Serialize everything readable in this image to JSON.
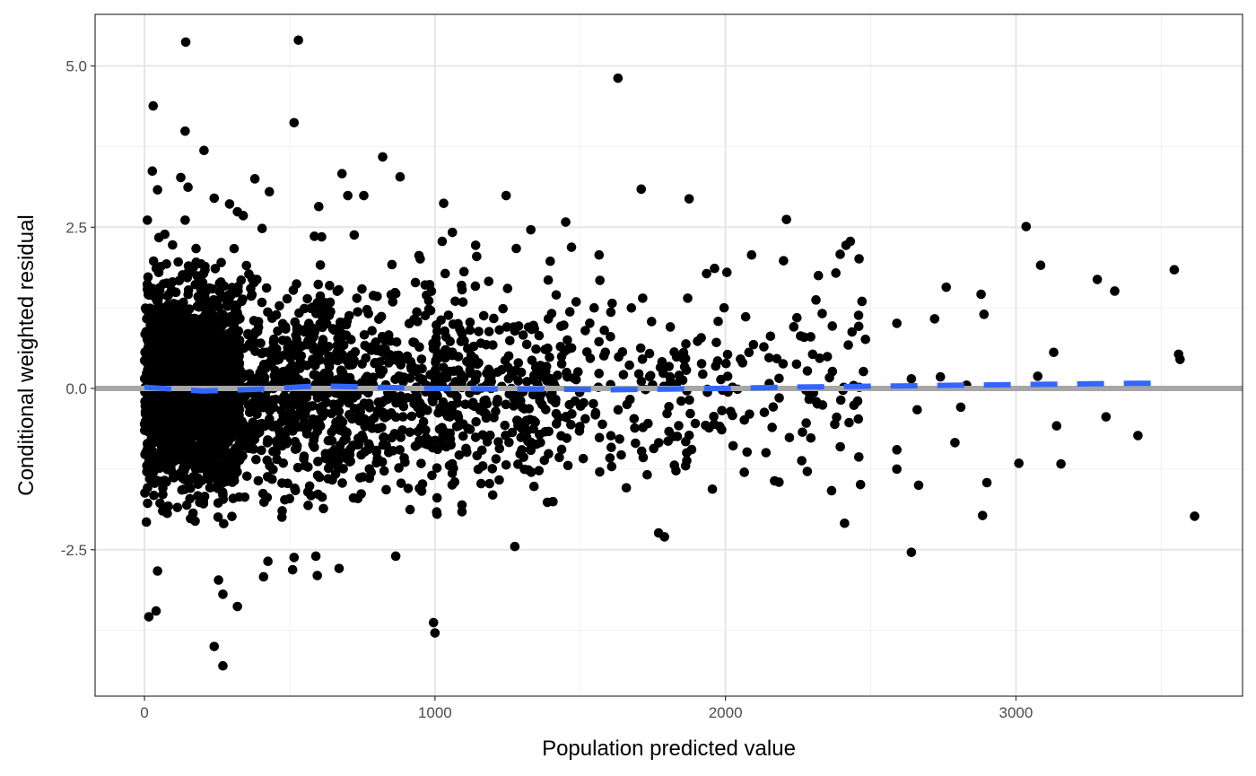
{
  "chart_data": {
    "type": "scatter",
    "title": "",
    "xlabel": "Population predicted value",
    "ylabel": "Conditional weighted residual",
    "xlim": [
      -170,
      3780
    ],
    "ylim": [
      -4.77,
      5.8
    ],
    "x_ticks": [
      {
        "value": 0,
        "label": "0"
      },
      {
        "value": 1000,
        "label": "1000"
      },
      {
        "value": 2000,
        "label": "2000"
      },
      {
        "value": 3000,
        "label": "3000"
      }
    ],
    "y_ticks": [
      {
        "value": -2.5,
        "label": "-2.5"
      },
      {
        "value": 0,
        "label": "0.0"
      },
      {
        "value": 2.5,
        "label": "2.5"
      },
      {
        "value": 5,
        "label": "5.0"
      }
    ],
    "x_minor_breaks": [
      500,
      1500,
      2500,
      3500
    ],
    "y_minor_breaks": [
      -3.75,
      -1.25,
      1.25,
      3.75
    ],
    "grid": true,
    "reference_line": {
      "y": 0,
      "color": "#a6a6a6"
    },
    "point_color": "#000000",
    "series": [
      {
        "type": "scatter",
        "points": [
          {
            "x": 142,
            "y": 5.37
          },
          {
            "x": 530,
            "y": 5.4
          },
          {
            "x": 1630,
            "y": 4.81
          },
          {
            "x": 30,
            "y": 4.38
          },
          {
            "x": 515,
            "y": 4.12
          },
          {
            "x": 140,
            "y": 3.99
          },
          {
            "x": 205,
            "y": 3.69
          },
          {
            "x": 820,
            "y": 3.59
          },
          {
            "x": 27,
            "y": 3.37
          },
          {
            "x": 680,
            "y": 3.33
          },
          {
            "x": 880,
            "y": 3.28
          },
          {
            "x": 125,
            "y": 3.27
          },
          {
            "x": 380,
            "y": 3.25
          },
          {
            "x": 45,
            "y": 3.08
          },
          {
            "x": 150,
            "y": 3.12
          },
          {
            "x": 430,
            "y": 3.05
          },
          {
            "x": 1710,
            "y": 3.09
          },
          {
            "x": 700,
            "y": 2.99
          },
          {
            "x": 755,
            "y": 2.99
          },
          {
            "x": 240,
            "y": 2.95
          },
          {
            "x": 1875,
            "y": 2.94
          },
          {
            "x": 1245,
            "y": 2.99
          },
          {
            "x": 1030,
            "y": 2.87
          },
          {
            "x": 293,
            "y": 2.86
          },
          {
            "x": 600,
            "y": 2.82
          },
          {
            "x": 320,
            "y": 2.74
          },
          {
            "x": 340,
            "y": 2.68
          },
          {
            "x": 10,
            "y": 2.61
          },
          {
            "x": 140,
            "y": 2.61
          },
          {
            "x": 2210,
            "y": 2.62
          },
          {
            "x": 1450,
            "y": 2.58
          },
          {
            "x": 3035,
            "y": 2.51
          },
          {
            "x": 1330,
            "y": 2.46
          },
          {
            "x": 405,
            "y": 2.48
          },
          {
            "x": 1060,
            "y": 2.42
          },
          {
            "x": 70,
            "y": 2.39
          },
          {
            "x": 722,
            "y": 2.38
          },
          {
            "x": 585,
            "y": 2.36
          },
          {
            "x": 610,
            "y": 2.35
          },
          {
            "x": 1025,
            "y": 2.28
          },
          {
            "x": 1140,
            "y": 2.22
          },
          {
            "x": 2430,
            "y": 2.28
          },
          {
            "x": 2415,
            "y": 2.22
          },
          {
            "x": 1470,
            "y": 2.19
          },
          {
            "x": 1280,
            "y": 2.17
          },
          {
            "x": 2090,
            "y": 2.07
          },
          {
            "x": 2395,
            "y": 2.08
          },
          {
            "x": 1565,
            "y": 2.07
          },
          {
            "x": 2460,
            "y": 2.01
          },
          {
            "x": 945,
            "y": 2.06
          },
          {
            "x": 2200,
            "y": 1.98
          },
          {
            "x": 3085,
            "y": 1.91
          },
          {
            "x": 852,
            "y": 1.92
          },
          {
            "x": 3545,
            "y": 1.84
          },
          {
            "x": 1935,
            "y": 1.78
          },
          {
            "x": 2005,
            "y": 1.8
          },
          {
            "x": 2380,
            "y": 1.79
          },
          {
            "x": 2320,
            "y": 1.75
          },
          {
            "x": 3280,
            "y": 1.69
          },
          {
            "x": 1185,
            "y": 1.66
          },
          {
            "x": 1390,
            "y": 1.68
          },
          {
            "x": 2760,
            "y": 1.57
          },
          {
            "x": 1250,
            "y": 1.55
          },
          {
            "x": 3340,
            "y": 1.51
          },
          {
            "x": 2880,
            "y": 1.46
          },
          {
            "x": 1715,
            "y": 1.4
          },
          {
            "x": 1870,
            "y": 1.4
          },
          {
            "x": 2470,
            "y": 1.35
          },
          {
            "x": 2590,
            "y": 1.01
          },
          {
            "x": 1610,
            "y": 1.32
          },
          {
            "x": 1975,
            "y": 1.04
          },
          {
            "x": 2720,
            "y": 1.08
          },
          {
            "x": 2890,
            "y": 1.15
          },
          {
            "x": 3130,
            "y": 0.56
          },
          {
            "x": 3560,
            "y": 0.53
          },
          {
            "x": 3565,
            "y": 0.45
          },
          {
            "x": 3075,
            "y": 0.19
          },
          {
            "x": 2740,
            "y": 0.18
          },
          {
            "x": 2640,
            "y": 0.15
          },
          {
            "x": 2830,
            "y": 0.05
          },
          {
            "x": 2810,
            "y": -0.29
          },
          {
            "x": 2660,
            "y": -0.33
          },
          {
            "x": 3310,
            "y": -0.44
          },
          {
            "x": 3140,
            "y": -0.58
          },
          {
            "x": 3420,
            "y": -0.73
          },
          {
            "x": 2790,
            "y": -0.84
          },
          {
            "x": 2590,
            "y": -0.95
          },
          {
            "x": 3010,
            "y": -1.16
          },
          {
            "x": 3155,
            "y": -1.17
          },
          {
            "x": 2590,
            "y": -1.25
          },
          {
            "x": 2900,
            "y": -1.46
          },
          {
            "x": 2665,
            "y": -1.5
          },
          {
            "x": 2465,
            "y": -1.49
          },
          {
            "x": 2885,
            "y": -1.97
          },
          {
            "x": 3615,
            "y": -1.98
          },
          {
            "x": 2410,
            "y": -2.09
          },
          {
            "x": 1790,
            "y": -2.3
          },
          {
            "x": 1770,
            "y": -2.24
          },
          {
            "x": 1275,
            "y": -2.45
          },
          {
            "x": 2640,
            "y": -2.54
          },
          {
            "x": 865,
            "y": -2.6
          },
          {
            "x": 515,
            "y": -2.62
          },
          {
            "x": 590,
            "y": -2.6
          },
          {
            "x": 595,
            "y": -2.9
          },
          {
            "x": 510,
            "y": -2.81
          },
          {
            "x": 670,
            "y": -2.79
          },
          {
            "x": 425,
            "y": -2.68
          },
          {
            "x": 410,
            "y": -2.92
          },
          {
            "x": 45,
            "y": -2.83
          },
          {
            "x": 255,
            "y": -2.97
          },
          {
            "x": 270,
            "y": -3.19
          },
          {
            "x": 320,
            "y": -3.38
          },
          {
            "x": 40,
            "y": -3.45
          },
          {
            "x": 15,
            "y": -3.54
          },
          {
            "x": 995,
            "y": -3.63
          },
          {
            "x": 1000,
            "y": -3.79
          },
          {
            "x": 240,
            "y": -4.0
          },
          {
            "x": 270,
            "y": -4.3
          }
        ]
      },
      {
        "type": "line",
        "style": "dashed",
        "color": "#3366ff",
        "points": [
          {
            "x": 0,
            "y": 0.02
          },
          {
            "x": 200,
            "y": -0.04
          },
          {
            "x": 400,
            "y": -0.01
          },
          {
            "x": 600,
            "y": 0.04
          },
          {
            "x": 800,
            "y": 0.02
          },
          {
            "x": 1000,
            "y": 0.0
          },
          {
            "x": 1200,
            "y": -0.01
          },
          {
            "x": 1400,
            "y": -0.01
          },
          {
            "x": 1600,
            "y": -0.02
          },
          {
            "x": 1800,
            "y": -0.01
          },
          {
            "x": 2000,
            "y": 0.0
          },
          {
            "x": 2200,
            "y": 0.02
          },
          {
            "x": 2400,
            "y": 0.03
          },
          {
            "x": 2600,
            "y": 0.04
          },
          {
            "x": 2800,
            "y": 0.05
          },
          {
            "x": 3000,
            "y": 0.06
          },
          {
            "x": 3200,
            "y": 0.07
          },
          {
            "x": 3400,
            "y": 0.08
          },
          {
            "x": 3500,
            "y": 0.08
          }
        ]
      }
    ]
  }
}
